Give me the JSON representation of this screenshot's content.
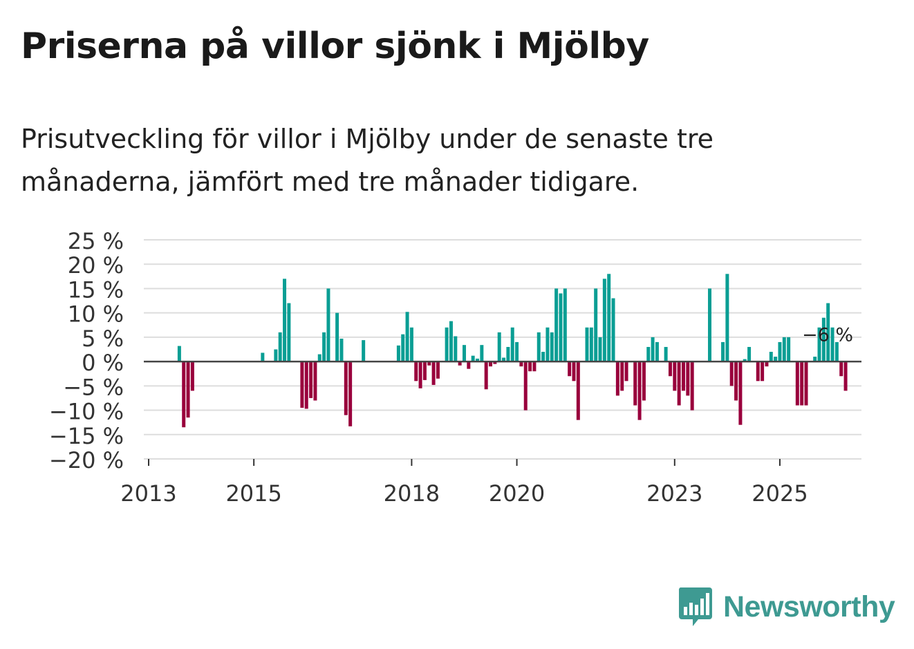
{
  "header": {
    "title": "Priserna på villor sjönk i Mjölby",
    "subtitle": "Prisutveckling för villor i Mjölby under de senaste tre månaderna, jämfört med tre månader tidigare."
  },
  "logo": {
    "text": "Newsworthy",
    "icon": "bar-chart-bubble-icon",
    "color": "#3e9a92"
  },
  "colors": {
    "positive": "#0a9e94",
    "negative": "#99003c",
    "grid": "#dddddd",
    "zero": "#444444"
  },
  "chart_data": {
    "type": "bar",
    "title": "Priserna på villor sjönk i Mjölby",
    "xlabel": "",
    "ylabel": "",
    "ylim": [
      -20,
      25
    ],
    "yticks": [
      25,
      20,
      15,
      10,
      5,
      0,
      -5,
      -10,
      -15,
      -20
    ],
    "ytick_labels": [
      "25 %",
      "20 %",
      "15 %",
      "10 %",
      "5 %",
      "0 %",
      "−5 %",
      "−10 %",
      "−15 %",
      "−20 %"
    ],
    "xticks": [
      {
        "label": "2013",
        "pos": 0
      },
      {
        "label": "2015",
        "pos": 24
      },
      {
        "label": "2018",
        "pos": 60
      },
      {
        "label": "2020",
        "pos": 84
      },
      {
        "label": "2023",
        "pos": 120
      },
      {
        "label": "2025",
        "pos": 144
      }
    ],
    "series_start": "2013-01",
    "annotation": {
      "text": "−6 %",
      "index": 154
    },
    "values": [
      null,
      null,
      null,
      null,
      null,
      null,
      null,
      3.2,
      -13.5,
      -11.5,
      -6,
      null,
      null,
      null,
      null,
      null,
      null,
      null,
      null,
      null,
      null,
      null,
      null,
      null,
      null,
      null,
      1.8,
      null,
      null,
      2.5,
      6,
      17,
      12,
      null,
      null,
      -9.5,
      -9.7,
      -7.5,
      -8,
      1.5,
      6,
      15,
      null,
      10,
      4.7,
      -11,
      -13.3,
      null,
      null,
      4.4,
      null,
      null,
      null,
      null,
      null,
      null,
      null,
      3.3,
      5.6,
      10.2,
      7,
      -4,
      -5.5,
      -3.8,
      -0.8,
      -4.8,
      -3.5,
      null,
      7,
      8.3,
      5.2,
      -0.8,
      3.4,
      -1.5,
      1.2,
      0.6,
      3.4,
      -5.7,
      -1,
      -0.5,
      6,
      0.8,
      3,
      7,
      4,
      -1,
      -10,
      -2,
      -2,
      6,
      2,
      7,
      6,
      15,
      14,
      15,
      -3,
      -4,
      -12,
      null,
      7,
      7,
      15,
      5,
      17,
      18,
      13,
      -7,
      -6,
      -4,
      null,
      -9,
      -12,
      -8,
      3,
      5,
      4,
      null,
      3,
      -3,
      -6,
      -9,
      -6,
      -7,
      -10,
      null,
      null,
      null,
      15,
      null,
      null,
      4,
      18,
      -5,
      -8,
      -13,
      0.5,
      3,
      null,
      -4,
      -4,
      -1,
      2,
      1,
      4,
      5,
      5,
      null,
      -9,
      -9,
      -9,
      null,
      1,
      7,
      9,
      12,
      7,
      4,
      -3,
      -6
    ]
  }
}
